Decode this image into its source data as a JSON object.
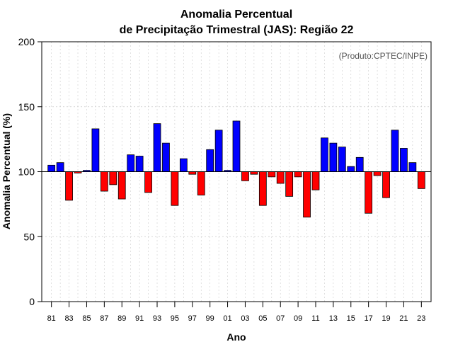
{
  "chart_data": {
    "type": "bar",
    "title_line1": "Anomalia Percentual",
    "title_line2": "de Precipitação Trimestral (JAS): Região 22",
    "xlabel": "Ano",
    "ylabel": "Anomalia Percentual (%)",
    "credit": "(Produto:CPTEC/INPE)",
    "ylim": [
      0,
      200
    ],
    "yticks": [
      0,
      50,
      100,
      150,
      200
    ],
    "baseline": 100,
    "colors": {
      "above": "#0000ff",
      "below": "#ff0000",
      "edge": "#000000",
      "grid": "#cccccc"
    },
    "categories": [
      "1981",
      "1982",
      "1983",
      "1984",
      "1985",
      "1986",
      "1987",
      "1988",
      "1989",
      "1990",
      "1991",
      "1992",
      "1993",
      "1994",
      "1995",
      "1996",
      "1997",
      "1998",
      "1999",
      "2000",
      "2001",
      "2002",
      "2003",
      "2004",
      "2005",
      "2006",
      "2007",
      "2008",
      "2009",
      "2010",
      "2011",
      "2012",
      "2013",
      "2014",
      "2015",
      "2016",
      "2017",
      "2018",
      "2019",
      "2020",
      "2021",
      "2022",
      "2023"
    ],
    "values": [
      105,
      107,
      78,
      99,
      101,
      133,
      85,
      90,
      79,
      113,
      112,
      84,
      137,
      122,
      74,
      110,
      98,
      82,
      117,
      132,
      101,
      139,
      93,
      98,
      74,
      96,
      91,
      81,
      96,
      65,
      86,
      126,
      122,
      119,
      104,
      111,
      68,
      97,
      80,
      132,
      118,
      107,
      87
    ],
    "xtick_labels": [
      "81",
      "83",
      "85",
      "87",
      "89",
      "91",
      "93",
      "95",
      "97",
      "99",
      "01",
      "03",
      "05",
      "07",
      "09",
      "11",
      "13",
      "15",
      "17",
      "19",
      "21",
      "23"
    ]
  }
}
